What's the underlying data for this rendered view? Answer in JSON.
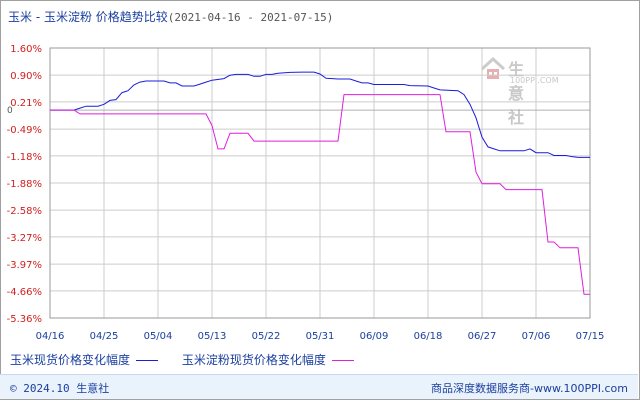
{
  "title": {
    "main": "玉米 - 玉米淀粉 价格趋势比较",
    "range": "(2021-04-16 - 2021-07-15)"
  },
  "watermark": {
    "cn": "生意社",
    "en": "100PPI.COM"
  },
  "legend": {
    "a": "玉米现货价格变化幅度",
    "b": "玉米淀粉现货价格变化幅度"
  },
  "footer": {
    "left": "© 2024.10 生意社",
    "right": "商品深度数据服务商-www.100PPI.com"
  },
  "colors": {
    "a": "#1c1cdc",
    "b": "#e01ee0",
    "grid": "#cccccc",
    "zero": "#b0b0b0",
    "label": "#d22020",
    "date": "#1a3f9f"
  },
  "chart_data": {
    "type": "line",
    "ylim": [
      -5.36,
      1.6
    ],
    "yticks": [
      1.6,
      0.9,
      0.21,
      -0.49,
      -1.18,
      -1.88,
      -2.58,
      -3.27,
      -3.97,
      -4.66,
      -5.36
    ],
    "ytick_labels": [
      "1.60%",
      "0.90%",
      "0.21%",
      "-0.49%",
      "-1.18%",
      "-1.88%",
      "-2.58%",
      "-3.27%",
      "-3.97%",
      "-4.66%",
      "-5.36%"
    ],
    "zero_label": "0",
    "xticks": [
      "04/16",
      "04/25",
      "05/04",
      "05/13",
      "05/22",
      "05/31",
      "06/09",
      "06/18",
      "06/27",
      "07/06",
      "07/15"
    ],
    "grid": true,
    "x_days": 90,
    "series": [
      {
        "name": "玉米现货价格变化幅度",
        "points": [
          [
            0,
            0
          ],
          [
            4,
            0
          ],
          [
            5,
            0.05
          ],
          [
            6,
            0.1
          ],
          [
            8,
            0.1
          ],
          [
            9,
            0.15
          ],
          [
            10,
            0.25
          ],
          [
            11,
            0.27
          ],
          [
            12,
            0.45
          ],
          [
            13,
            0.5
          ],
          [
            14,
            0.65
          ],
          [
            15,
            0.72
          ],
          [
            16,
            0.75
          ],
          [
            19,
            0.75
          ],
          [
            20,
            0.7
          ],
          [
            21,
            0.7
          ],
          [
            22,
            0.62
          ],
          [
            24,
            0.62
          ],
          [
            25,
            0.67
          ],
          [
            26,
            0.72
          ],
          [
            27,
            0.77
          ],
          [
            29,
            0.81
          ],
          [
            30,
            0.9
          ],
          [
            31,
            0.92
          ],
          [
            33,
            0.92
          ],
          [
            34,
            0.87
          ],
          [
            35,
            0.87
          ],
          [
            36,
            0.92
          ],
          [
            37,
            0.92
          ],
          [
            38,
            0.95
          ],
          [
            40,
            0.97
          ],
          [
            42,
            0.98
          ],
          [
            44,
            0.98
          ],
          [
            45,
            0.93
          ],
          [
            46,
            0.82
          ],
          [
            48,
            0.8
          ],
          [
            50,
            0.8
          ],
          [
            51,
            0.75
          ],
          [
            52,
            0.7
          ],
          [
            53,
            0.7
          ],
          [
            54,
            0.66
          ],
          [
            56,
            0.66
          ],
          [
            57,
            0.66
          ],
          [
            59,
            0.66
          ],
          [
            60,
            0.63
          ],
          [
            63,
            0.62
          ],
          [
            64,
            0.57
          ],
          [
            65,
            0.52
          ],
          [
            68,
            0.5
          ],
          [
            69,
            0.4
          ],
          [
            70,
            0.15
          ],
          [
            71,
            -0.2
          ],
          [
            72,
            -0.7
          ],
          [
            73,
            -0.95
          ],
          [
            74,
            -1.0
          ],
          [
            75,
            -1.05
          ],
          [
            78,
            -1.05
          ],
          [
            79,
            -1.05
          ],
          [
            80,
            -1.0
          ],
          [
            81,
            -1.1
          ],
          [
            83,
            -1.1
          ],
          [
            84,
            -1.17
          ],
          [
            86,
            -1.17
          ],
          [
            87,
            -1.2
          ],
          [
            88,
            -1.22
          ],
          [
            90,
            -1.22
          ]
        ]
      },
      {
        "name": "玉米淀粉现货价格变化幅度",
        "points": [
          [
            0,
            0
          ],
          [
            4,
            0
          ],
          [
            5,
            -0.1
          ],
          [
            26,
            -0.1
          ],
          [
            27,
            -0.4
          ],
          [
            28,
            -1.0
          ],
          [
            29,
            -1.0
          ],
          [
            30,
            -0.6
          ],
          [
            31,
            -0.6
          ],
          [
            33,
            -0.6
          ],
          [
            34,
            -0.8
          ],
          [
            42,
            -0.8
          ],
          [
            43,
            -0.8
          ],
          [
            47,
            -0.8
          ],
          [
            48,
            -0.8
          ],
          [
            49,
            0.4
          ],
          [
            50,
            0.4
          ],
          [
            59,
            0.4
          ],
          [
            60,
            0.4
          ],
          [
            61,
            0.4
          ],
          [
            62,
            0.4
          ],
          [
            63,
            0.4
          ],
          [
            65,
            0.4
          ],
          [
            66,
            -0.56
          ],
          [
            67,
            -0.56
          ],
          [
            70,
            -0.56
          ],
          [
            71,
            -1.6
          ],
          [
            72,
            -1.9
          ],
          [
            73,
            -1.9
          ],
          [
            75,
            -1.9
          ],
          [
            76,
            -2.05
          ],
          [
            80,
            -2.05
          ],
          [
            81,
            -2.05
          ],
          [
            82,
            -2.05
          ],
          [
            83,
            -3.4
          ],
          [
            84,
            -3.4
          ],
          [
            85,
            -3.55
          ],
          [
            87,
            -3.55
          ],
          [
            88,
            -3.55
          ],
          [
            89,
            -4.75
          ],
          [
            90,
            -4.75
          ]
        ]
      }
    ]
  }
}
